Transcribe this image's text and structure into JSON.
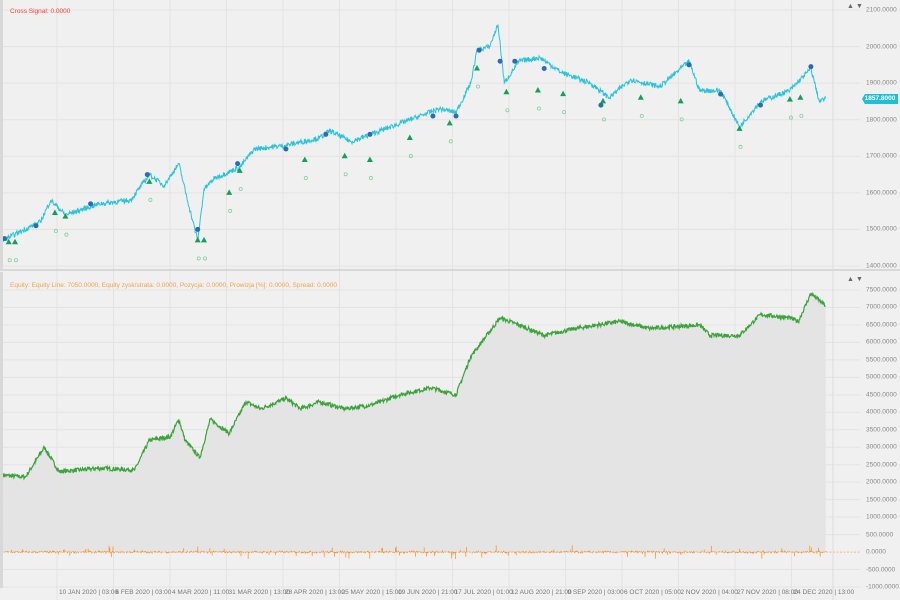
{
  "price_pane": {
    "legend": "Cross Signal: 0.0000",
    "current_price": "1857.8000",
    "y_ticks": [
      "2100.0000",
      "2000.0000",
      "1900.0000",
      "1800.0000",
      "1700.0000",
      "1600.0000",
      "1500.0000",
      "1400.0000"
    ],
    "line_color": "#29c4dc",
    "buy_color": "#13a05a",
    "sell_color": "#2a6db5"
  },
  "equity_pane": {
    "legend": "Equity: Equity Line: 7050.0000, Equity zysk/strata: 0.0000, Pozycja: 0.0000, Prowizja [%]: 0.0000, Spread: 0.0000",
    "y_ticks": [
      "7500.0000",
      "7000.0000",
      "6500.0000",
      "6000.0000",
      "5500.0000",
      "5000.0000",
      "4500.0000",
      "4000.0000",
      "3500.0000",
      "3000.0000",
      "2500.0000",
      "2000.0000",
      "1500.0000",
      "1000.0000",
      "500.0000",
      "0.0000",
      "-500.0000",
      "-1000.0000"
    ],
    "line_color": "#3aa33a",
    "fill_color": "#e2e2e2",
    "pnl_color": "#f5953a"
  },
  "pane_controls": {
    "up": "▲",
    "down": "▼"
  },
  "x_axis": {
    "labels": [
      "10 JAN 2020 | 03:00",
      "6 FEB 2020 | 03:00",
      "4 MAR 2020 | 11:00",
      "31 MAR 2020 | 13:00",
      "28 APR 2020 | 13:00",
      "25 MAY 2020 | 15:00",
      "19 JUN 2020 | 21:00",
      "17 JUL 2020 | 01:00",
      "12 AUG 2020 | 21:00",
      "9 SEP 2020 | 03:00",
      "6 OCT 2020 | 05:00",
      "2 NOV 2020 | 04:00",
      "27 NOV 2020 | 08:00",
      "24 DEC 2020 | 13:00"
    ]
  },
  "chart_data": [
    {
      "type": "line",
      "ylim": [
        1400,
        2100
      ],
      "grid": true,
      "series": [
        {
          "x": [
            "2019-12-15",
            "2020-01-02",
            "2020-01-07",
            "2020-01-14",
            "2020-01-30",
            "2020-02-14",
            "2020-02-23",
            "2020-03-01",
            "2020-03-08",
            "2020-03-13",
            "2020-03-17",
            "2020-03-20",
            "2020-03-25",
            "2020-04-06",
            "2020-04-13",
            "2020-04-28",
            "2020-05-14",
            "2020-05-19",
            "2020-05-29",
            "2020-06-12",
            "2020-06-26",
            "2020-07-10",
            "2020-07-18",
            "2020-07-25",
            "2020-07-28",
            "2020-08-03",
            "2020-08-07",
            "2020-08-10",
            "2020-08-17",
            "2020-08-27",
            "2020-09-06",
            "2020-09-20",
            "2020-09-29",
            "2020-10-09",
            "2020-10-23",
            "2020-11-06",
            "2020-11-11",
            "2020-11-21",
            "2020-11-30",
            "2020-12-10",
            "2020-12-24",
            "2021-01-03",
            "2021-01-07",
            "2021-01-10"
          ],
          "y": [
            1470,
            1520,
            1580,
            1540,
            1570,
            1580,
            1650,
            1620,
            1680,
            1560,
            1470,
            1610,
            1640,
            1670,
            1720,
            1730,
            1750,
            1770,
            1740,
            1770,
            1800,
            1830,
            1820,
            1900,
            1990,
            2000,
            2060,
            1900,
            1960,
            1970,
            1930,
            1900,
            1860,
            1910,
            1890,
            1960,
            1880,
            1880,
            1780,
            1850,
            1880,
            1940,
            1850,
            1858
          ]
        }
      ],
      "buy_signals": {
        "x": [
          "2019-12-18",
          "2019-12-21",
          "2020-01-09",
          "2020-01-14",
          "2020-02-23",
          "2020-03-17",
          "2020-03-20",
          "2020-04-01",
          "2020-04-06",
          "2020-05-07",
          "2020-05-26",
          "2020-06-07",
          "2020-06-26",
          "2020-07-15",
          "2020-07-28",
          "2020-08-11",
          "2020-08-26",
          "2020-09-07",
          "2020-09-26",
          "2020-10-14",
          "2020-11-02",
          "2020-11-30",
          "2020-12-24",
          "2020-12-29"
        ],
        "y": [
          1465,
          1465,
          1545,
          1535,
          1630,
          1470,
          1470,
          1600,
          1660,
          1690,
          1700,
          1690,
          1750,
          1790,
          1940,
          1875,
          1880,
          1870,
          1850,
          1860,
          1850,
          1775,
          1855,
          1860
        ]
      },
      "sell_signals": {
        "x": [
          "2019-12-16",
          "2019-12-31",
          "2020-01-26",
          "2020-02-22",
          "2020-03-17",
          "2020-04-05",
          "2020-04-28",
          "2020-05-17",
          "2020-06-07",
          "2020-07-07",
          "2020-07-18",
          "2020-07-29",
          "2020-08-08",
          "2020-08-15",
          "2020-08-29",
          "2020-09-25",
          "2020-11-06",
          "2020-11-21",
          "2020-12-10",
          "2021-01-03"
        ],
        "y": [
          1475,
          1510,
          1570,
          1650,
          1500,
          1680,
          1720,
          1760,
          1760,
          1810,
          1810,
          1990,
          1960,
          1960,
          1940,
          1840,
          1950,
          1870,
          1840,
          1945
        ]
      }
    },
    {
      "type": "area",
      "ylim": [
        -1000,
        7500
      ],
      "grid": true,
      "series": [
        {
          "name": "Equity Line",
          "x": [
            "2019-12-15",
            "2019-12-26",
            "2020-01-04",
            "2020-01-11",
            "2020-01-30",
            "2020-02-16",
            "2020-02-23",
            "2020-03-04",
            "2020-03-08",
            "2020-03-11",
            "2020-03-18",
            "2020-03-23",
            "2020-04-01",
            "2020-04-09",
            "2020-04-16",
            "2020-04-28",
            "2020-05-05",
            "2020-05-14",
            "2020-05-26",
            "2020-06-07",
            "2020-06-12",
            "2020-06-21",
            "2020-07-06",
            "2020-07-18",
            "2020-07-25",
            "2020-08-08",
            "2020-08-17",
            "2020-08-29",
            "2020-09-13",
            "2020-10-04",
            "2020-10-18",
            "2020-11-11",
            "2020-11-16",
            "2020-11-30",
            "2020-12-10",
            "2020-12-24",
            "2020-12-28",
            "2021-01-03",
            "2021-01-10"
          ],
          "y": [
            2200,
            2150,
            3000,
            2300,
            2400,
            2350,
            3200,
            3300,
            3800,
            3200,
            2700,
            3800,
            3400,
            4300,
            4100,
            4400,
            4100,
            4300,
            4100,
            4200,
            4300,
            4500,
            4700,
            4500,
            5600,
            6700,
            6500,
            6200,
            6400,
            6600,
            6400,
            6500,
            6200,
            6200,
            6800,
            6700,
            6600,
            7400,
            7050
          ]
        }
      ]
    }
  ]
}
